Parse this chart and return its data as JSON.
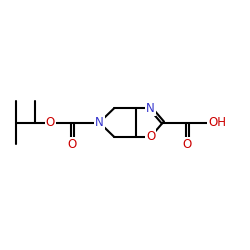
{
  "bg_color": "#ffffff",
  "atom_colors": {
    "C": "#000000",
    "N": "#3333cc",
    "O": "#cc0000"
  },
  "figsize": [
    2.5,
    2.5
  ],
  "dpi": 100,
  "lw": 1.5,
  "fs": 8.5
}
